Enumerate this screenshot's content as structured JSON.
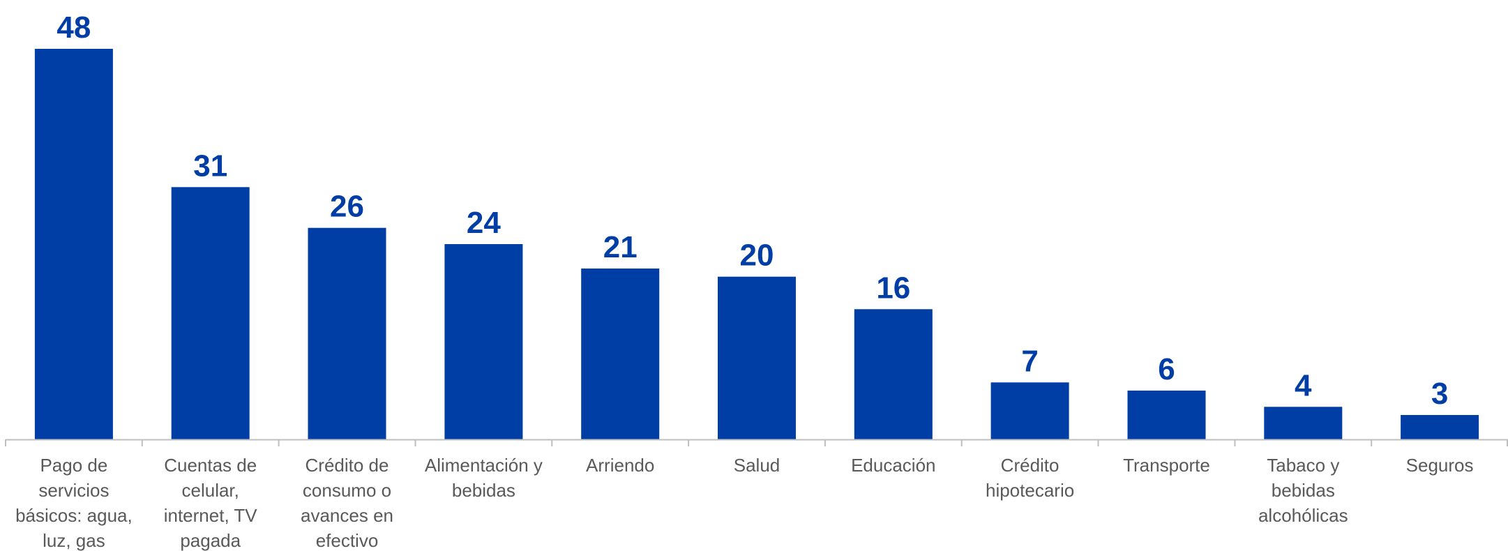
{
  "chart_data": {
    "type": "bar",
    "categories": [
      [
        "Pago de",
        "servicios",
        "básicos: agua,",
        "luz, gas"
      ],
      [
        "Cuentas de",
        "celular,",
        "internet, TV",
        "pagada"
      ],
      [
        "Crédito de",
        "consumo o",
        "avances en",
        "efectivo"
      ],
      [
        "Alimentación y",
        "bebidas"
      ],
      [
        "Arriendo"
      ],
      [
        "Salud"
      ],
      [
        "Educación"
      ],
      [
        "Crédito",
        "hipotecario"
      ],
      [
        "Transporte"
      ],
      [
        "Tabaco y",
        "bebidas",
        "alcohólicas"
      ],
      [
        "Seguros"
      ]
    ],
    "values": [
      48,
      31,
      26,
      24,
      21,
      20,
      16,
      7,
      6,
      4,
      3
    ],
    "data_labels": [
      "48",
      "31",
      "26",
      "24",
      "21",
      "20",
      "16",
      "7",
      "6",
      "4",
      "3"
    ],
    "ylim": [
      0,
      48
    ],
    "grid": false,
    "legend": "none",
    "colors": {
      "bar": "#003DA5",
      "label": "#003DA5",
      "axis": "#BFBFBF",
      "tick_text": "#595959"
    }
  }
}
